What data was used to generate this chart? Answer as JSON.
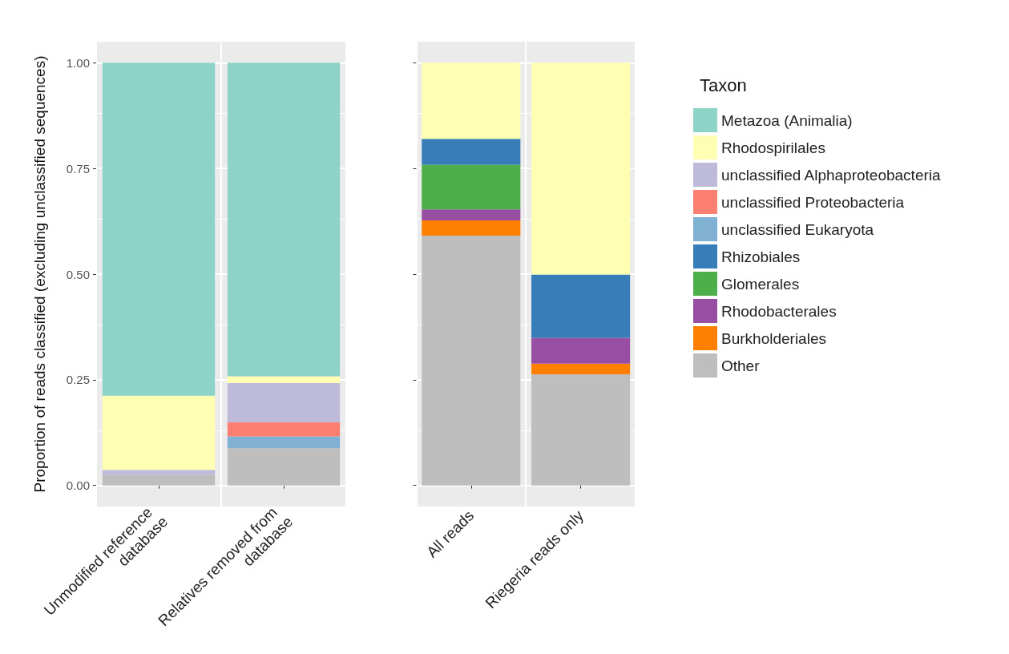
{
  "chart_data": [
    {
      "type": "bar",
      "stacked": true,
      "ylabel": "Proportion of reads classified (excluding unclassified sequences)",
      "categories": [
        "Unmodified reference database",
        "Relatives removed from database"
      ],
      "ylim": [
        -0.05,
        1.05
      ],
      "yticks": [
        {
          "value": 0,
          "label": "0.00"
        },
        {
          "value": 0.25,
          "label": "0.25"
        },
        {
          "value": 0.5,
          "label": "0.50"
        },
        {
          "value": 0.75,
          "label": "0.75"
        },
        {
          "value": 1,
          "label": "1.00"
        }
      ],
      "grid": true,
      "legend": false,
      "series": [
        {
          "color": "#bebebe",
          "values": [
            0.025,
            0.088
          ]
        },
        {
          "color": "#80b1d3",
          "values": [
            null,
            0.028
          ]
        },
        {
          "color": "#fb8072",
          "values": [
            null,
            0.033
          ]
        },
        {
          "color": "#bebada",
          "values": [
            0.012,
            0.093
          ]
        },
        {
          "color": "#ffffb3",
          "values": [
            0.175,
            0.016
          ]
        },
        {
          "color": "#8dd3c7",
          "values": [
            0.788,
            0.742
          ]
        }
      ]
    },
    {
      "type": "bar",
      "stacked": true,
      "legend_title": "Taxon",
      "categories": [
        "All reads",
        "Riegeria reads only"
      ],
      "ylim": [
        -0.05,
        1.05
      ],
      "yticks": [
        {
          "value": 0,
          "label": null
        },
        {
          "value": 0.25,
          "label": null
        },
        {
          "value": 0.5,
          "label": null
        },
        {
          "value": 0.75,
          "label": null
        },
        {
          "value": 1,
          "label": null
        }
      ],
      "tick_labels": "x",
      "grid": true,
      "legend": "right",
      "series": [
        {
          "name": "Other",
          "color": "#bebebe",
          "values": [
            0.591,
            0.263
          ]
        },
        {
          "name": "Burkholderiales",
          "color": "#ff7f00",
          "values": [
            0.036,
            0.025
          ]
        },
        {
          "name": "Rhodobacterales",
          "color": "#984ea3",
          "values": [
            0.026,
            0.061
          ]
        },
        {
          "name": "Glomerales",
          "color": "#4daf4a",
          "values": [
            0.106,
            null
          ]
        },
        {
          "name": "Rhizobiales",
          "color": "#377eb8",
          "values": [
            0.061,
            0.15
          ]
        },
        {
          "name": "unclassified Eukaryota",
          "color": "#80b1d3",
          "values": [
            null,
            null
          ]
        },
        {
          "name": "unclassified Proteobacteria",
          "color": "#fb8072",
          "values": [
            null,
            null
          ]
        },
        {
          "name": "unclassified Alphaproteobacteria",
          "color": "#bebada",
          "values": [
            null,
            null
          ]
        },
        {
          "name": "Rhodospirilales",
          "color": "#ffffb3",
          "values": [
            0.18,
            0.501
          ]
        },
        {
          "name": "Metazoa (Animalia)",
          "color": "#8dd3c7",
          "values": [
            null,
            null
          ]
        }
      ]
    }
  ]
}
